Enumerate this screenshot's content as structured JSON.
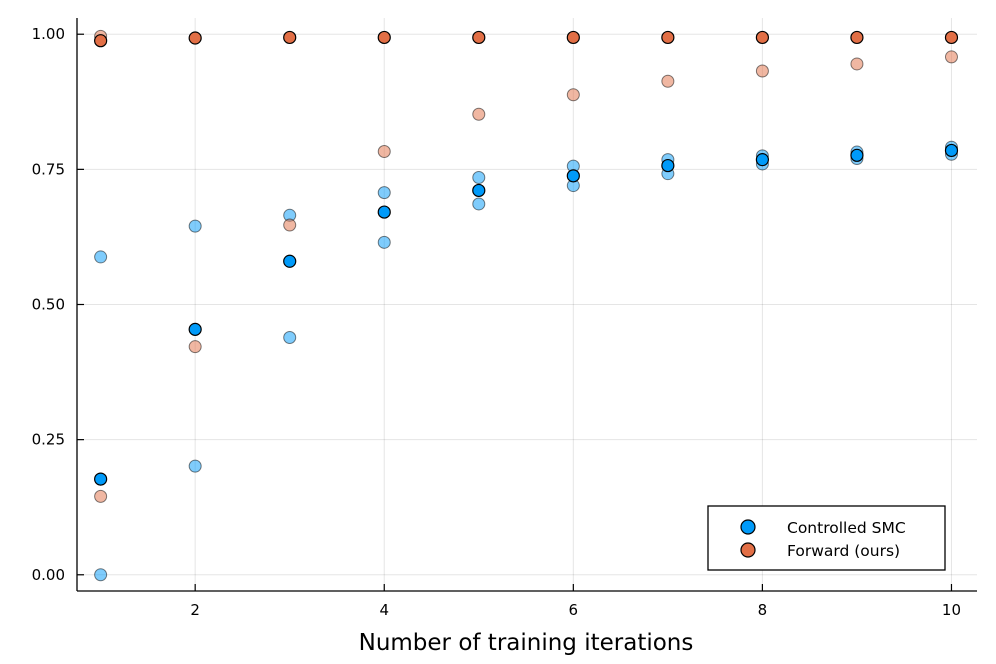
{
  "chart_data": {
    "type": "scatter",
    "title": "",
    "xlabel": "Number of training iterations",
    "ylabel": "",
    "xlim": [
      0.75,
      10.27
    ],
    "ylim": [
      -0.03,
      1.03
    ],
    "xticks": [
      2,
      4,
      6,
      8,
      10
    ],
    "xtick_labels": [
      "2",
      "4",
      "6",
      "8",
      "10"
    ],
    "yticks": [
      0,
      0.25,
      0.5,
      0.75,
      1.0
    ],
    "ytick_labels": [
      "0.00",
      "0.25",
      "0.50",
      "0.75",
      "1.00"
    ],
    "grid": true,
    "legend_position": "bottom-right",
    "series": [
      {
        "name": "Controlled SMC",
        "color": "#009af9",
        "mean": {
          "x": [
            1,
            2,
            3,
            4,
            5,
            6,
            7,
            8,
            9,
            10
          ],
          "y": [
            0.177,
            0.454,
            0.58,
            0.671,
            0.711,
            0.738,
            0.757,
            0.768,
            0.776,
            0.785
          ]
        },
        "runs": {
          "x": [
            1,
            1,
            2,
            2,
            3,
            3,
            4,
            4,
            5,
            5,
            6,
            6,
            7,
            7,
            8,
            8,
            9,
            9,
            10,
            10
          ],
          "y": [
            0.0,
            0.588,
            0.201,
            0.645,
            0.439,
            0.665,
            0.615,
            0.707,
            0.686,
            0.735,
            0.72,
            0.756,
            0.742,
            0.768,
            0.76,
            0.775,
            0.77,
            0.782,
            0.778,
            0.791
          ]
        }
      },
      {
        "name": "Forward (ours)",
        "color": "#e26f46",
        "mean": {
          "x": [
            1,
            2,
            3,
            4,
            5,
            6,
            7,
            8,
            9,
            10
          ],
          "y": [
            0.988,
            0.993,
            0.994,
            0.994,
            0.994,
            0.994,
            0.994,
            0.994,
            0.994,
            0.994
          ]
        },
        "runs": {
          "x": [
            1,
            1,
            2,
            3,
            4,
            5,
            6,
            7,
            8,
            9,
            10
          ],
          "y": [
            0.145,
            0.996,
            0.422,
            0.647,
            0.783,
            0.852,
            0.888,
            0.913,
            0.932,
            0.945,
            0.958
          ]
        }
      }
    ]
  }
}
